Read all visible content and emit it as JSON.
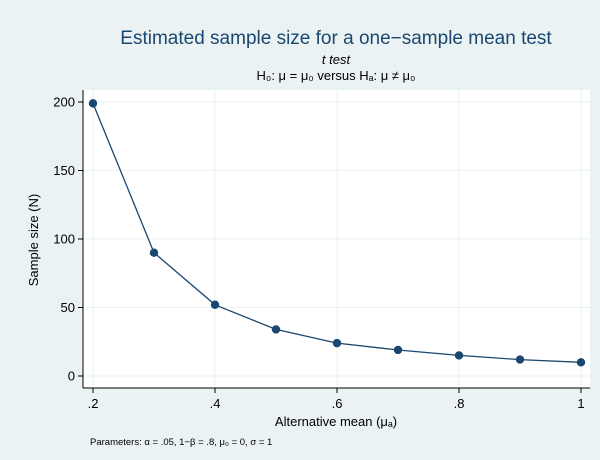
{
  "chart_data": {
    "type": "line",
    "title": "Estimated sample size for a one−sample mean test",
    "subtitle_test": "t test",
    "subtitle_hyp": "H₀: μ = μ₀  versus  Hₐ: μ ≠ μ₀",
    "xlabel": "Alternative mean (μₐ)",
    "ylabel": "Sample size (N)",
    "note": "Parameters: α = .05, 1−β = .8, μ₀ = 0, σ = 1",
    "x": [
      0.2,
      0.3,
      0.4,
      0.5,
      0.6,
      0.7,
      0.8,
      0.9,
      1.0
    ],
    "y": [
      199,
      90,
      52,
      34,
      24,
      19,
      15,
      12,
      10
    ],
    "xlim": [
      0.2,
      1.0
    ],
    "ylim": [
      0,
      200
    ],
    "xticks": [
      0.2,
      0.4,
      0.6,
      0.8,
      1.0
    ],
    "xtick_labels": [
      ".2",
      ".4",
      ".6",
      ".8",
      "1"
    ],
    "yticks": [
      0,
      50,
      100,
      150,
      200
    ],
    "ytick_labels": [
      "0",
      "50",
      "100",
      "150",
      "200"
    ],
    "grid": true,
    "colors": {
      "line": "#1a476f",
      "marker": "#1a476f",
      "background": "#eaf2f3",
      "plot_bg": "#ffffff",
      "grid": "#eaf2f3",
      "title": "#1a476f"
    }
  }
}
